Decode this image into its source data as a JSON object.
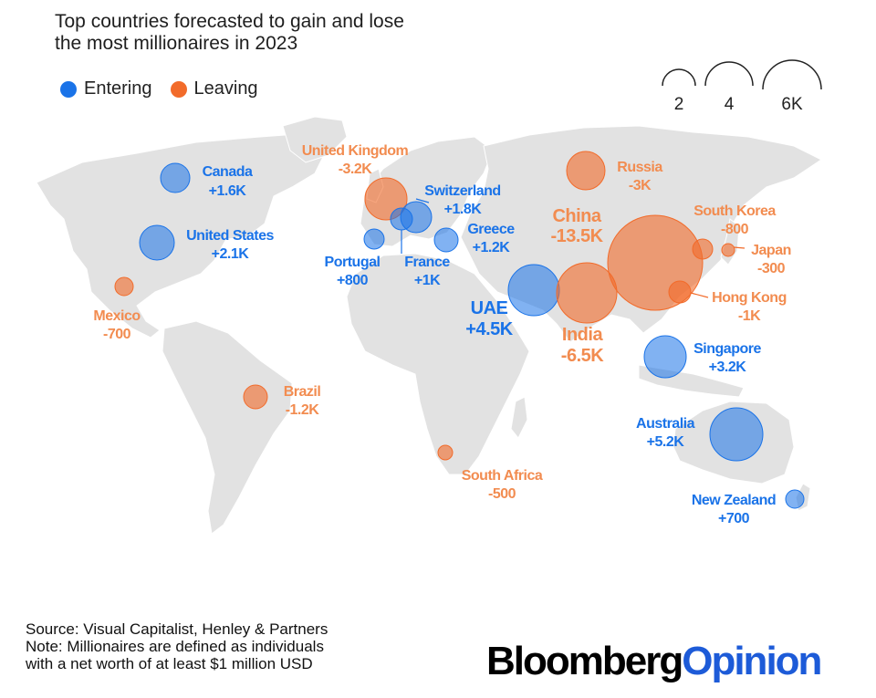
{
  "title_line1": "Top countries forecasted to gain and lose",
  "title_line2": "the most millionaires in 2023",
  "legend": {
    "entering": "Entering",
    "leaving": "Leaving",
    "entering_color": "#1a73e8",
    "leaving_color": "#f26b2a"
  },
  "size_legend": [
    "2",
    "4",
    "6K"
  ],
  "countries": [
    {
      "name": "Canada",
      "value": "+1.6K",
      "type": "entering"
    },
    {
      "name": "United States",
      "value": "+2.1K",
      "type": "entering"
    },
    {
      "name": "Mexico",
      "value": "-700",
      "type": "leaving"
    },
    {
      "name": "Brazil",
      "value": "-1.2K",
      "type": "leaving"
    },
    {
      "name": "United Kingdom",
      "value": "-3.2K",
      "type": "leaving"
    },
    {
      "name": "Portugal",
      "value": "+800",
      "type": "entering"
    },
    {
      "name": "France",
      "value": "+1K",
      "type": "entering"
    },
    {
      "name": "Switzerland",
      "value": "+1.8K",
      "type": "entering"
    },
    {
      "name": "Greece",
      "value": "+1.2K",
      "type": "entering"
    },
    {
      "name": "Russia",
      "value": "-3K",
      "type": "leaving"
    },
    {
      "name": "China",
      "value": "-13.5K",
      "type": "leaving"
    },
    {
      "name": "UAE",
      "value": "+4.5K",
      "type": "entering"
    },
    {
      "name": "India",
      "value": "-6.5K",
      "type": "leaving"
    },
    {
      "name": "South Korea",
      "value": "-800",
      "type": "leaving"
    },
    {
      "name": "Japan",
      "value": "-300",
      "type": "leaving"
    },
    {
      "name": "Hong Kong",
      "value": "-1K",
      "type": "leaving"
    },
    {
      "name": "Singapore",
      "value": "+3.2K",
      "type": "entering"
    },
    {
      "name": "Australia",
      "value": "+5.2K",
      "type": "entering"
    },
    {
      "name": "South Africa",
      "value": "-500",
      "type": "leaving"
    },
    {
      "name": "New Zealand",
      "value": "+700",
      "type": "entering"
    }
  ],
  "footer": {
    "line1": "Source: Visual Capitalist, Henley & Partners",
    "line2": "Note: Millionaires are defined as individuals",
    "line3": "with a net worth of at least $1 million USD"
  },
  "brand": {
    "part1": "Bloomberg",
    "part2": "Opinion"
  }
}
